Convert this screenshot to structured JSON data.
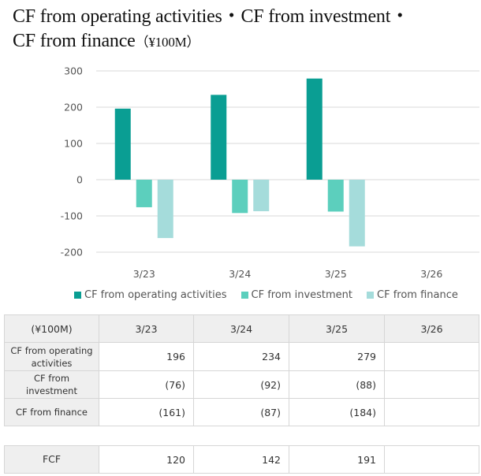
{
  "title": {
    "line1": "CF from operating activities・CF from investment・",
    "line2": "CF from finance",
    "unit": "（¥100M）"
  },
  "colors": {
    "operating": "#0a9e93",
    "investment": "#5ccfbd",
    "finance": "#a5dcdb",
    "gridline": "#d9d9d9",
    "table_header_bg": "#efefef"
  },
  "chart_data": {
    "type": "bar",
    "title": "CF from operating activities・CF from investment・CF from finance（¥100M）",
    "xlabel": "",
    "ylabel": "",
    "categories": [
      "3/23",
      "3/24",
      "3/25",
      "3/26"
    ],
    "series": [
      {
        "name": "CF from operating activities",
        "color_key": "operating",
        "values": [
          196,
          234,
          279,
          null
        ]
      },
      {
        "name": "CF from investment",
        "color_key": "investment",
        "values": [
          -76,
          -92,
          -88,
          null
        ]
      },
      {
        "name": "CF from finance",
        "color_key": "finance",
        "values": [
          -161,
          -87,
          -184,
          null
        ]
      }
    ],
    "ylim": [
      -200,
      300
    ],
    "yticks": [
      300,
      200,
      100,
      0,
      -100,
      -200
    ],
    "ytick_labels": [
      "300",
      "200",
      "100",
      "0",
      "-100",
      "-200"
    ],
    "grid": true,
    "legend_position": "bottom"
  },
  "table": {
    "header": [
      "(¥100M)",
      "3/23",
      "3/24",
      "3/25",
      "3/26"
    ],
    "rows": [
      {
        "label": "CF from operating activities",
        "label_line1": "CF from operating",
        "label_line2": "activities",
        "values": [
          "196",
          "234",
          "279",
          ""
        ]
      },
      {
        "label": "CF from investment",
        "values": [
          "(76)",
          "(92)",
          "(88)",
          ""
        ]
      },
      {
        "label": "CF from finance",
        "values": [
          "(161)",
          "(87)",
          "(184)",
          ""
        ]
      }
    ],
    "fcf": {
      "label": "FCF",
      "values": [
        "120",
        "142",
        "191",
        ""
      ]
    }
  }
}
